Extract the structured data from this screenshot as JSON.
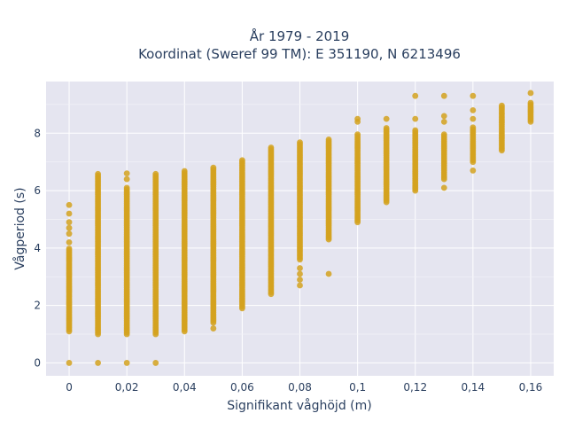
{
  "chart_data": {
    "type": "scatter",
    "title": "År 1979 - 2019",
    "subtitle": "Koordinat (Sweref 99 TM): E 351190, N 6213496",
    "xlabel": "Signifikant våghöjd (m)",
    "ylabel": "Vågperiod (s)",
    "xlim": [
      -0.008,
      0.168
    ],
    "ylim": [
      -0.45,
      9.8
    ],
    "x_ticks": [
      0,
      0.02,
      0.04,
      0.06,
      0.08,
      0.1,
      0.12,
      0.14,
      0.16
    ],
    "x_tick_labels": [
      "0",
      "0,02",
      "0,04",
      "0,06",
      "0,08",
      "0,1",
      "0,12",
      "0,14",
      "0,16"
    ],
    "y_ticks": [
      0,
      2,
      4,
      6,
      8
    ],
    "y_tick_labels": [
      "0",
      "2",
      "4",
      "6",
      "8"
    ],
    "grid": true,
    "legend": "none",
    "marker_color": "#d4a21f",
    "plot_background": "#e5e5f0",
    "columns": [
      {
        "x": 0,
        "y_min": 1.1,
        "y_max": 4.0,
        "extra_y": [
          4.2,
          4.5,
          4.7,
          4.9,
          5.2,
          5.5
        ],
        "zero_point": true
      },
      {
        "x": 0.01,
        "y_min": 1.0,
        "y_max": 6.6,
        "extra_y": [],
        "zero_point": true
      },
      {
        "x": 0.02,
        "y_min": 1.0,
        "y_max": 6.1,
        "extra_y": [
          6.4,
          6.6
        ],
        "zero_point": true
      },
      {
        "x": 0.03,
        "y_min": 1.0,
        "y_max": 6.6,
        "extra_y": [],
        "zero_point": true
      },
      {
        "x": 0.04,
        "y_min": 1.1,
        "y_max": 6.7,
        "extra_y": [],
        "zero_point": false
      },
      {
        "x": 0.05,
        "y_min": 1.4,
        "y_max": 6.8,
        "extra_y": [
          1.2
        ],
        "zero_point": false
      },
      {
        "x": 0.06,
        "y_min": 1.9,
        "y_max": 7.1,
        "extra_y": [],
        "zero_point": false
      },
      {
        "x": 0.07,
        "y_min": 2.4,
        "y_max": 7.5,
        "extra_y": [],
        "zero_point": false
      },
      {
        "x": 0.08,
        "y_min": 3.6,
        "y_max": 7.7,
        "extra_y": [
          2.7,
          2.9,
          3.1,
          3.3
        ],
        "zero_point": false
      },
      {
        "x": 0.09,
        "y_min": 4.3,
        "y_max": 7.8,
        "extra_y": [
          3.1
        ],
        "zero_point": false
      },
      {
        "x": 0.1,
        "y_min": 4.9,
        "y_max": 8.0,
        "extra_y": [
          8.4,
          8.5
        ],
        "zero_point": false
      },
      {
        "x": 0.11,
        "y_min": 5.6,
        "y_max": 8.2,
        "extra_y": [
          8.5
        ],
        "zero_point": false
      },
      {
        "x": 0.12,
        "y_min": 6.0,
        "y_max": 8.1,
        "extra_y": [
          8.5,
          9.3
        ],
        "zero_point": false
      },
      {
        "x": 0.13,
        "y_min": 6.4,
        "y_max": 8.0,
        "extra_y": [
          6.1,
          8.4,
          8.6,
          9.3
        ],
        "zero_point": false
      },
      {
        "x": 0.14,
        "y_min": 7.0,
        "y_max": 8.2,
        "extra_y": [
          6.7,
          8.5,
          8.8,
          9.3
        ],
        "zero_point": false
      },
      {
        "x": 0.15,
        "y_min": 7.4,
        "y_max": 9.0,
        "extra_y": [],
        "zero_point": false
      },
      {
        "x": 0.16,
        "y_min": 8.4,
        "y_max": 9.1,
        "extra_y": [
          9.4
        ],
        "zero_point": false
      }
    ]
  }
}
